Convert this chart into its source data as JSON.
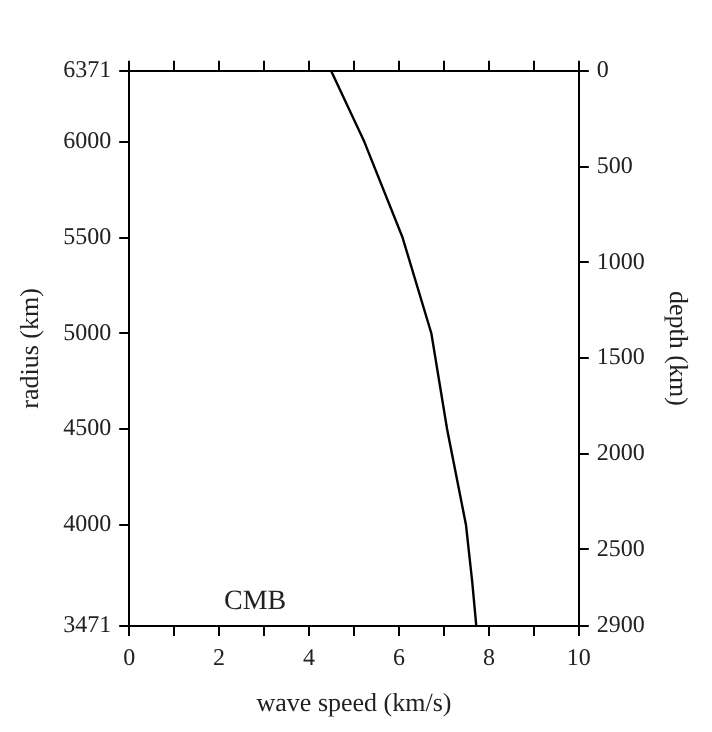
{
  "chart_data": {
    "type": "line",
    "xlabel": "wave speed (km/s)",
    "ylabel": "radius (km)",
    "y2label": "depth (km)",
    "xlim": [
      0,
      10
    ],
    "xticks": [
      0,
      {
        "value": 1,
        "label": null
      },
      2,
      {
        "value": 3,
        "label": null
      },
      4,
      {
        "value": 5,
        "label": null
      },
      6,
      {
        "value": 7,
        "label": null
      },
      8,
      {
        "value": 9,
        "label": null
      },
      10
    ],
    "ylim": [
      3471,
      6371
    ],
    "yticks": [
      3471,
      4000,
      4500,
      5000,
      5500,
      6000,
      6371
    ],
    "y2lim": [
      2900,
      0
    ],
    "y2ticks": [
      0,
      500,
      1000,
      1500,
      2000,
      2500,
      2900
    ],
    "series": [
      {
        "color": "#000000",
        "x": [
          4.49,
          5.23,
          6.08,
          6.72,
          7.07,
          7.49,
          7.63,
          7.72
        ],
        "values": [
          6371,
          6000,
          5500,
          5000,
          4500,
          4000,
          3700,
          3471
        ]
      }
    ],
    "annotations": [
      "CMB"
    ],
    "grid": false,
    "legend": false,
    "marker": "none",
    "line_style": "solid"
  }
}
